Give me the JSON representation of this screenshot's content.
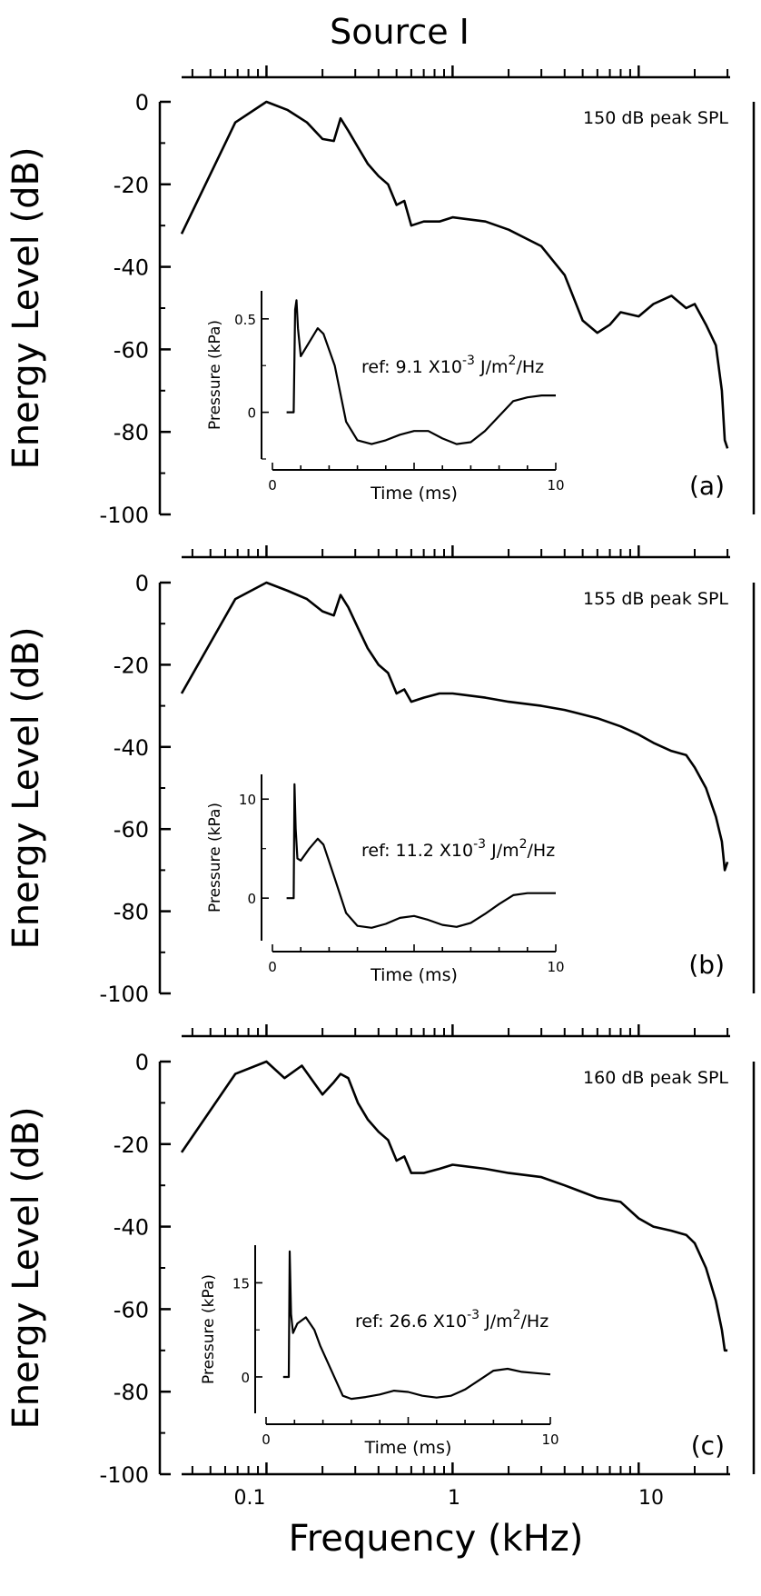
{
  "figure": {
    "title": "Source I",
    "xlabel": "Frequency (kHz)",
    "x_ticks": [
      "0.1",
      "1",
      "10"
    ]
  },
  "chart_data": [
    {
      "type": "line",
      "panel_label": "(a)",
      "annotation": "150 dB peak SPL",
      "ylabel": "Energy Level (dB)",
      "xscale": "log",
      "xlim": [
        0.035,
        31
      ],
      "ylim": [
        -100,
        0
      ],
      "y_ticks": [
        "0",
        "-20",
        "-40",
        "-60",
        "-80",
        "-100"
      ],
      "series": [
        {
          "x": [
            0.035,
            0.068,
            0.1,
            0.13,
            0.165,
            0.2,
            0.23,
            0.25,
            0.275,
            0.31,
            0.35,
            0.4,
            0.45,
            0.5,
            0.55,
            0.6,
            0.7,
            0.85,
            1.0,
            1.5,
            2.0,
            3.0,
            4.0,
            5.0,
            6.0,
            7.0,
            8.0,
            10,
            12,
            15,
            18,
            20,
            23,
            26,
            28,
            29,
            30
          ],
          "y": [
            -32,
            -5,
            0,
            -2,
            -5,
            -9,
            -9.5,
            -4,
            -7,
            -11,
            -15,
            -18,
            -20,
            -25,
            -24,
            -30,
            -29,
            -29,
            -28,
            -29,
            -31,
            -35,
            -42,
            -53,
            -56,
            -54,
            -51,
            -52,
            -49,
            -47,
            -50,
            -49,
            -54,
            -59,
            -70,
            -82,
            -84
          ]
        }
      ],
      "inset": {
        "type": "line",
        "xlabel": "Time (ms)",
        "ylabel": "Pressure (kPa)",
        "x_ticks": [
          "0",
          "10"
        ],
        "y_ticks": [
          "0.5",
          "0"
        ],
        "xlim": [
          0,
          10
        ],
        "ylim": [
          -0.25,
          0.65
        ],
        "annotation": "ref: 9.1 X10<sup>-3</sup> J/m<sup>2</sup>/Hz",
        "ref_text": {
          "prefix": "ref: 9.1 X10",
          "exp1": "-3",
          "mid": " J/m",
          "exp2": "2",
          "suffix": "/Hz"
        },
        "series": [
          {
            "x": [
              0.5,
              0.75,
              0.8,
              0.85,
              0.9,
              1.0,
              1.2,
              1.6,
              1.8,
              2.2,
              2.6,
              3.0,
              3.5,
              4.0,
              4.5,
              5.0,
              5.5,
              6.0,
              6.5,
              7.0,
              7.5,
              8.0,
              8.5,
              9.0,
              9.5,
              10.0
            ],
            "y": [
              0.0,
              0.0,
              0.55,
              0.6,
              0.45,
              0.3,
              0.35,
              0.45,
              0.42,
              0.25,
              -0.05,
              -0.15,
              -0.17,
              -0.15,
              -0.12,
              -0.1,
              -0.1,
              -0.14,
              -0.17,
              -0.16,
              -0.1,
              -0.02,
              0.06,
              0.08,
              0.09,
              0.09
            ]
          }
        ]
      }
    },
    {
      "type": "line",
      "panel_label": "(b)",
      "annotation": "155 dB peak SPL",
      "ylabel": "Energy Level (dB)",
      "xscale": "log",
      "xlim": [
        0.035,
        31
      ],
      "ylim": [
        -100,
        0
      ],
      "y_ticks": [
        "0",
        "-20",
        "-40",
        "-60",
        "-80",
        "-100"
      ],
      "series": [
        {
          "x": [
            0.035,
            0.068,
            0.1,
            0.13,
            0.165,
            0.2,
            0.23,
            0.25,
            0.275,
            0.31,
            0.35,
            0.4,
            0.45,
            0.5,
            0.55,
            0.6,
            0.7,
            0.85,
            1.0,
            1.5,
            2.0,
            3.0,
            4.0,
            6.0,
            8.0,
            10,
            12,
            15,
            18,
            20,
            23,
            26,
            28,
            29,
            30
          ],
          "y": [
            -27,
            -4,
            0,
            -2,
            -4,
            -7,
            -8,
            -3,
            -6,
            -11,
            -16,
            -20,
            -22,
            -27,
            -26,
            -29,
            -28,
            -27,
            -27,
            -28,
            -29,
            -30,
            -31,
            -33,
            -35,
            -37,
            -39,
            -41,
            -42,
            -45,
            -50,
            -57,
            -63,
            -70,
            -68
          ]
        }
      ],
      "inset": {
        "type": "line",
        "xlabel": "Time (ms)",
        "ylabel": "Pressure (kPa)",
        "x_ticks": [
          "0",
          "10"
        ],
        "y_ticks": [
          "10",
          "0"
        ],
        "xlim": [
          0,
          10
        ],
        "ylim": [
          -4.3,
          12.5
        ],
        "ref_text": {
          "prefix": "ref: 11.2 X10",
          "exp1": "-3",
          "mid": " J/m",
          "exp2": "2",
          "suffix": "/Hz"
        },
        "series": [
          {
            "x": [
              0.5,
              0.75,
              0.78,
              0.82,
              0.88,
              1.0,
              1.3,
              1.6,
              1.8,
              2.2,
              2.6,
              3.0,
              3.5,
              4.0,
              4.5,
              5.0,
              5.5,
              6.0,
              6.5,
              7.0,
              7.5,
              8.0,
              8.5,
              9.0,
              9.5,
              10.0
            ],
            "y": [
              0.0,
              0.0,
              11.5,
              7.0,
              4.0,
              3.8,
              5.0,
              6.0,
              5.4,
              2.0,
              -1.5,
              -2.8,
              -3.0,
              -2.6,
              -2.0,
              -1.8,
              -2.2,
              -2.7,
              -2.9,
              -2.5,
              -1.6,
              -0.6,
              0.3,
              0.5,
              0.5,
              0.5
            ]
          }
        ]
      }
    },
    {
      "type": "line",
      "panel_label": "(c)",
      "annotation": "160 dB peak SPL",
      "ylabel": "Energy Level (dB)",
      "xscale": "log",
      "xlim": [
        0.035,
        31
      ],
      "ylim": [
        -100,
        0
      ],
      "y_ticks": [
        "0",
        "-20",
        "-40",
        "-60",
        "-80",
        "-100"
      ],
      "series": [
        {
          "x": [
            0.035,
            0.068,
            0.1,
            0.125,
            0.155,
            0.2,
            0.23,
            0.25,
            0.275,
            0.31,
            0.35,
            0.4,
            0.45,
            0.5,
            0.55,
            0.6,
            0.7,
            0.85,
            1.0,
            1.5,
            2.0,
            3.0,
            4.0,
            6.0,
            8.0,
            10,
            12,
            15,
            18,
            20,
            23,
            26,
            28,
            29,
            30
          ],
          "y": [
            -22,
            -3,
            0,
            -4,
            -1,
            -8,
            -5,
            -3,
            -4,
            -10,
            -14,
            -17,
            -19,
            -24,
            -23,
            -27,
            -27,
            -26,
            -25,
            -26,
            -27,
            -28,
            -30,
            -33,
            -34,
            -38,
            -40,
            -41,
            -42,
            -44,
            -50,
            -58,
            -65,
            -70,
            -70
          ]
        }
      ],
      "inset": {
        "type": "line",
        "xlabel": "Time (ms)",
        "ylabel": "Pressure (kPa)",
        "x_ticks": [
          "0",
          "10"
        ],
        "y_ticks": [
          "15",
          "0"
        ],
        "xlim": [
          0,
          10
        ],
        "ylim": [
          -5.8,
          21
        ],
        "ref_text": {
          "prefix": "ref: 26.6 X10",
          "exp1": "-3",
          "mid": " J/m",
          "exp2": "2",
          "suffix": "/Hz"
        },
        "series": [
          {
            "x": [
              0.6,
              0.8,
              0.83,
              0.88,
              0.95,
              1.1,
              1.4,
              1.7,
              1.9,
              2.3,
              2.7,
              3.0,
              3.5,
              4.0,
              4.5,
              5.0,
              5.5,
              6.0,
              6.5,
              7.0,
              7.5,
              8.0,
              8.5,
              9.0,
              9.5,
              10.0
            ],
            "y": [
              0.0,
              0.0,
              20.0,
              10.0,
              7.0,
              8.5,
              9.5,
              7.5,
              5.0,
              1.0,
              -3.0,
              -3.5,
              -3.2,
              -2.8,
              -2.2,
              -2.4,
              -3.0,
              -3.3,
              -3.0,
              -2.0,
              -0.5,
              1.0,
              1.3,
              0.8,
              0.6,
              0.4
            ]
          }
        ]
      }
    }
  ]
}
